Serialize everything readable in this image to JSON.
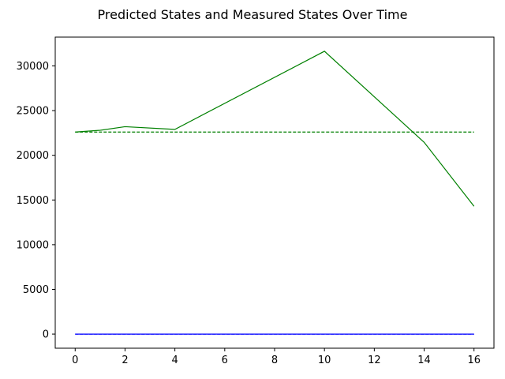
{
  "chart_data": {
    "type": "line",
    "title": "Predicted States and Measured States Over Time",
    "xlabel": "",
    "ylabel": "",
    "xlim": [
      -0.8,
      16.8
    ],
    "ylim": [
      -1582,
      33222
    ],
    "x_ticks": [
      0,
      2,
      4,
      6,
      8,
      10,
      12,
      14,
      16
    ],
    "y_ticks": [
      0,
      5000,
      10000,
      15000,
      20000,
      25000,
      30000
    ],
    "grid": false,
    "legend": "none",
    "series": [
      {
        "color": "#008000",
        "style": "solid",
        "x": [
          0,
          1,
          2,
          4,
          10,
          14,
          16
        ],
        "values": [
          22600,
          22800,
          23200,
          22900,
          31640,
          21450,
          14300
        ]
      },
      {
        "color": "#008000",
        "style": "dashed",
        "x": [
          0,
          16
        ],
        "values": [
          22600,
          22600
        ]
      },
      {
        "color": "#0000ff",
        "style": "solid",
        "x": [
          0,
          16
        ],
        "values": [
          0,
          0
        ]
      },
      {
        "color": "#0000ff",
        "style": "dashed",
        "x": [
          0,
          16
        ],
        "values": [
          0,
          0
        ]
      }
    ]
  }
}
